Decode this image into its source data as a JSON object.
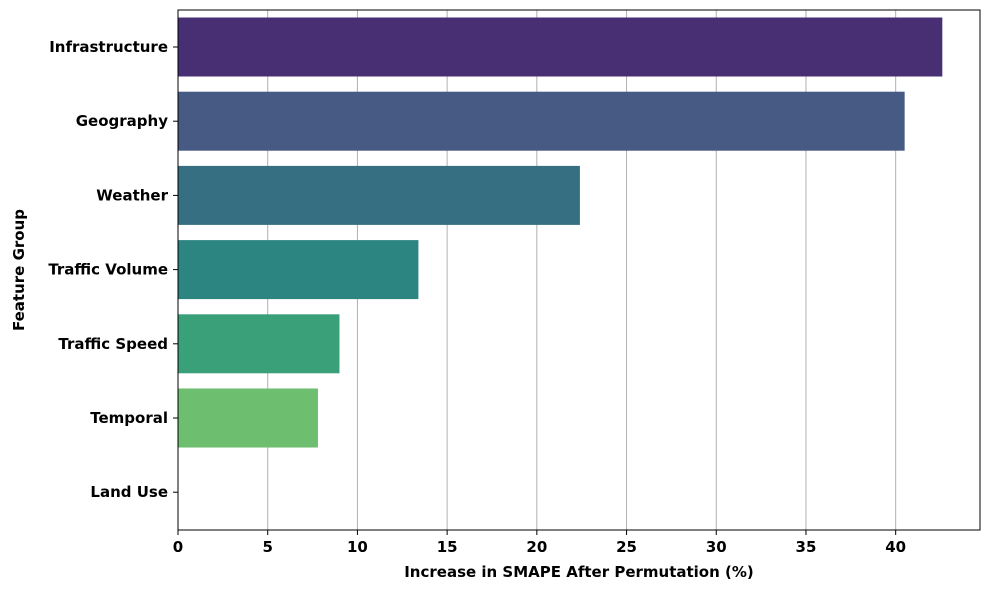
{
  "chart_data": {
    "type": "bar",
    "orientation": "horizontal",
    "categories": [
      "Infrastructure",
      "Geography",
      "Weather",
      "Traffic Volume",
      "Traffic Speed",
      "Temporal",
      "Land Use"
    ],
    "values": [
      42.6,
      40.5,
      22.4,
      13.4,
      9.0,
      7.8,
      0.0
    ],
    "colors": [
      "#482f73",
      "#465a84",
      "#366e82",
      "#2c8580",
      "#3aa07a",
      "#6dbe6e",
      "#b5de2b"
    ],
    "title": "",
    "xlabel": "Increase in SMAPE After Permutation (%)",
    "ylabel": "Feature Group",
    "xlim": [
      0,
      44.7
    ],
    "xticks": [
      0,
      5,
      10,
      15,
      20,
      25,
      30,
      35,
      40
    ],
    "grid": "x-axis vertical lines",
    "legend": "none"
  }
}
